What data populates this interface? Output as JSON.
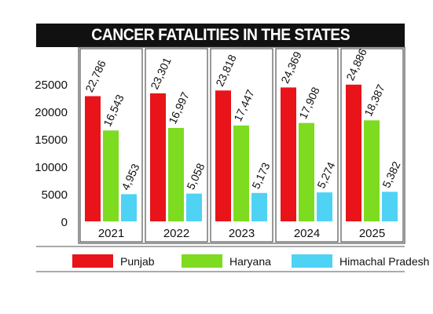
{
  "chart_data": {
    "type": "bar",
    "title": "CANCER FATALITIES IN THE STATES",
    "categories": [
      "2021",
      "2022",
      "2023",
      "2024",
      "2025"
    ],
    "series": [
      {
        "name": "Punjab",
        "color": "#e8141a",
        "values": [
          22786,
          23301,
          23818,
          24369,
          24886
        ],
        "labels": [
          "22,786",
          "23,301",
          "23,818",
          "24,369",
          "24,886"
        ]
      },
      {
        "name": "Haryana",
        "color": "#7ddc1f",
        "values": [
          16543,
          16997,
          17447,
          17908,
          18387
        ],
        "labels": [
          "16,543",
          "16,997",
          "17,447",
          "17,908",
          "18,387"
        ]
      },
      {
        "name": "Himachal Pradesh",
        "color": "#4fd3f4",
        "values": [
          4953,
          5058,
          5173,
          5274,
          5382
        ],
        "labels": [
          "4,953",
          "5,058",
          "5,173",
          "5,274",
          "5,382"
        ]
      }
    ],
    "yticks": [
      "0",
      "5000",
      "10000",
      "15000",
      "20000",
      "25000"
    ],
    "ylim": [
      0,
      25000
    ],
    "legend": "bottom",
    "grid": false
  }
}
